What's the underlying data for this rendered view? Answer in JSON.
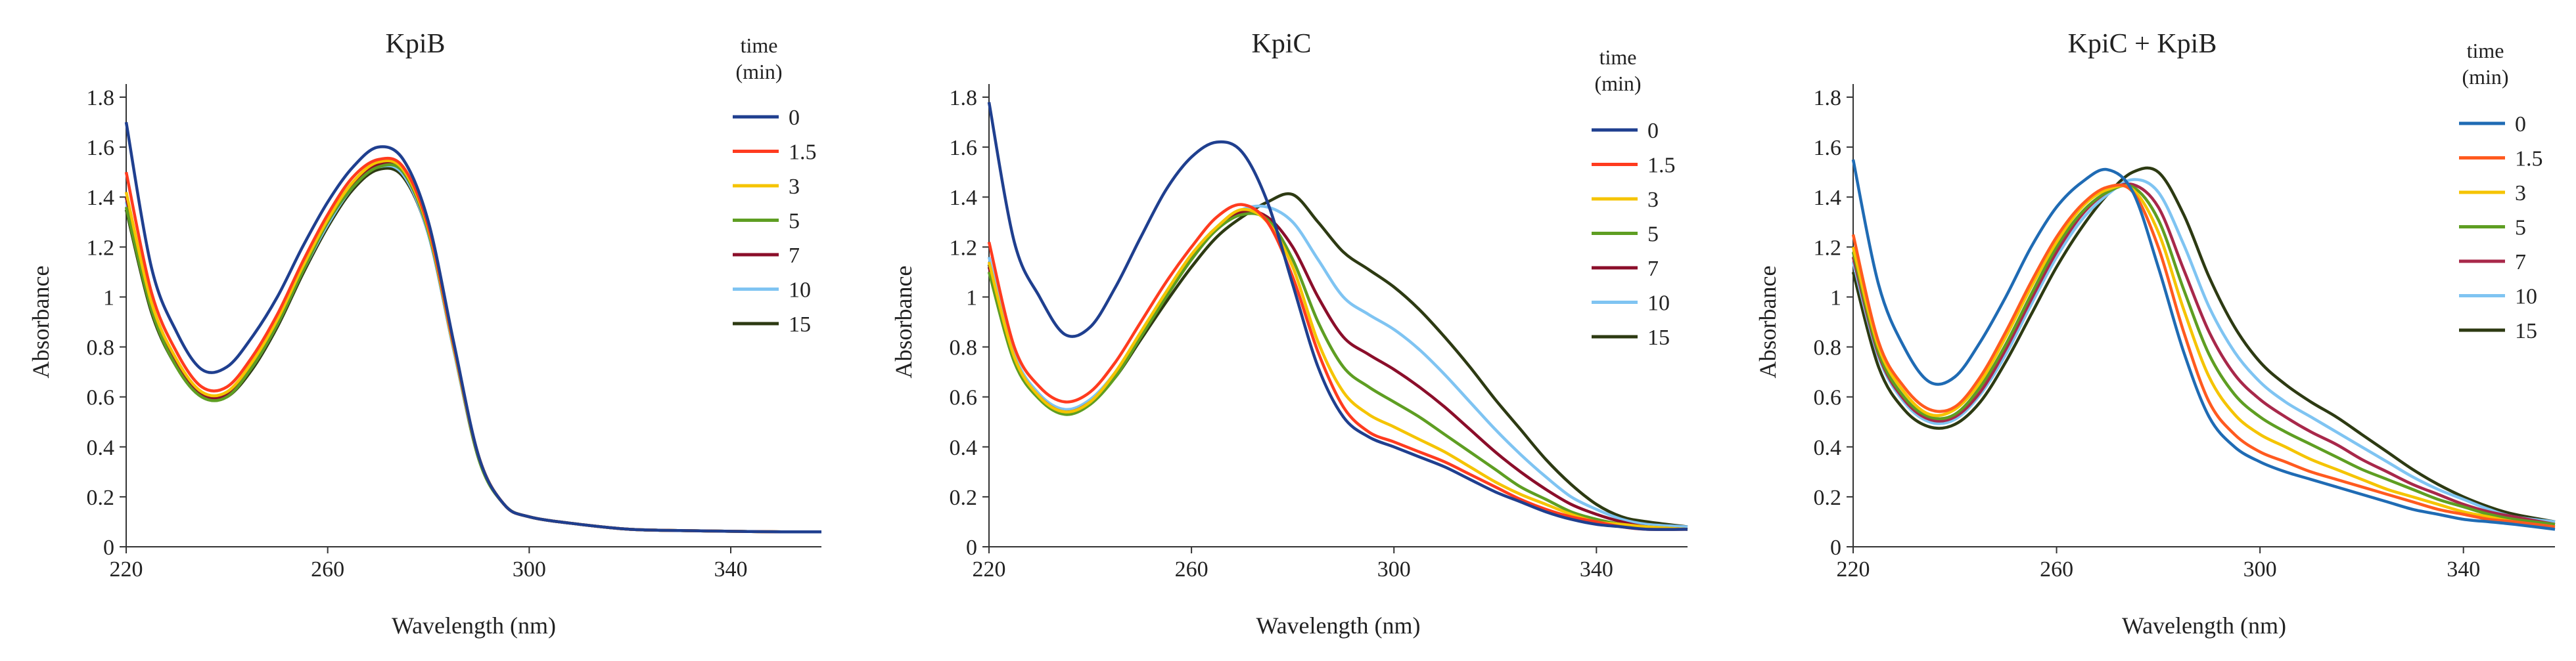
{
  "chart_data": [
    {
      "type": "line",
      "title": "KpiB",
      "xlabel": "Wavelength (nm)",
      "ylabel": "Absorbance",
      "xlim": [
        220,
        358
      ],
      "ylim": [
        0,
        1.8
      ],
      "xticks": [
        220,
        260,
        300,
        340
      ],
      "xtick_labels": [
        "220",
        "260",
        "300",
        "340"
      ],
      "yticks": [
        0,
        0.2,
        0.4,
        0.6,
        0.8,
        1,
        1.2,
        1.4,
        1.6,
        1.8
      ],
      "ytick_labels": [
        "0",
        "0.2",
        "0.4",
        "0.6",
        "0.8",
        "1",
        "1.2",
        "1.4",
        "1.6",
        "1.8"
      ],
      "legend_title": [
        "time",
        "(min)"
      ],
      "x": [
        220,
        225,
        230,
        235,
        240,
        245,
        250,
        255,
        260,
        265,
        270,
        275,
        280,
        285,
        290,
        295,
        300,
        310,
        320,
        330,
        340,
        350,
        358
      ],
      "series": [
        {
          "name": "0",
          "color": "#1f3f8f",
          "values": [
            1.7,
            1.12,
            0.86,
            0.71,
            0.72,
            0.84,
            1.0,
            1.2,
            1.38,
            1.52,
            1.6,
            1.55,
            1.3,
            0.82,
            0.36,
            0.17,
            0.12,
            0.09,
            0.07,
            0.065,
            0.062,
            0.06,
            0.06
          ]
        },
        {
          "name": "1.5",
          "color": "#ff3b1f",
          "values": [
            1.5,
            1.02,
            0.78,
            0.64,
            0.64,
            0.76,
            0.93,
            1.14,
            1.33,
            1.48,
            1.55,
            1.52,
            1.28,
            0.81,
            0.36,
            0.17,
            0.12,
            0.09,
            0.07,
            0.065,
            0.062,
            0.06,
            0.06
          ]
        },
        {
          "name": "3",
          "color": "#f5c400",
          "values": [
            1.42,
            0.98,
            0.75,
            0.62,
            0.62,
            0.74,
            0.91,
            1.12,
            1.31,
            1.46,
            1.54,
            1.51,
            1.27,
            0.8,
            0.36,
            0.17,
            0.12,
            0.09,
            0.07,
            0.065,
            0.062,
            0.06,
            0.06
          ]
        },
        {
          "name": "5",
          "color": "#5e9e22",
          "values": [
            1.36,
            0.95,
            0.72,
            0.6,
            0.6,
            0.72,
            0.89,
            1.1,
            1.3,
            1.44,
            1.52,
            1.5,
            1.26,
            0.8,
            0.35,
            0.17,
            0.12,
            0.09,
            0.07,
            0.065,
            0.062,
            0.06,
            0.06
          ]
        },
        {
          "name": "7",
          "color": "#8b0e2a",
          "values": [
            1.4,
            0.97,
            0.74,
            0.61,
            0.61,
            0.73,
            0.9,
            1.11,
            1.3,
            1.45,
            1.53,
            1.5,
            1.26,
            0.8,
            0.36,
            0.17,
            0.12,
            0.09,
            0.07,
            0.065,
            0.062,
            0.06,
            0.06
          ]
        },
        {
          "name": "10",
          "color": "#7fc4f2",
          "values": [
            1.38,
            0.96,
            0.73,
            0.6,
            0.61,
            0.72,
            0.89,
            1.1,
            1.29,
            1.44,
            1.52,
            1.49,
            1.25,
            0.79,
            0.35,
            0.17,
            0.12,
            0.09,
            0.07,
            0.065,
            0.062,
            0.06,
            0.06
          ]
        },
        {
          "name": "15",
          "color": "#2d3a12",
          "values": [
            1.35,
            0.94,
            0.72,
            0.6,
            0.6,
            0.71,
            0.88,
            1.09,
            1.28,
            1.43,
            1.51,
            1.48,
            1.25,
            0.79,
            0.35,
            0.17,
            0.12,
            0.09,
            0.07,
            0.065,
            0.062,
            0.06,
            0.06
          ]
        }
      ]
    },
    {
      "type": "line",
      "title": "KpiC",
      "xlabel": "Wavelength (nm)",
      "ylabel": "Absorbance",
      "xlim": [
        220,
        358
      ],
      "ylim": [
        0,
        1.8
      ],
      "xticks": [
        220,
        260,
        300,
        340
      ],
      "xtick_labels": [
        "220",
        "260",
        "300",
        "340"
      ],
      "yticks": [
        0,
        0.2,
        0.4,
        0.6,
        0.8,
        1,
        1.2,
        1.4,
        1.6,
        1.8
      ],
      "ytick_labels": [
        "0",
        "0.2",
        "0.4",
        "0.6",
        "0.8",
        "1",
        "1.2",
        "1.4",
        "1.6",
        "1.8"
      ],
      "legend_title": [
        "time",
        "(min)"
      ],
      "x": [
        220,
        225,
        230,
        235,
        240,
        245,
        250,
        255,
        260,
        265,
        270,
        275,
        280,
        285,
        290,
        295,
        300,
        305,
        310,
        315,
        320,
        325,
        330,
        335,
        340,
        345,
        350,
        358
      ],
      "series": [
        {
          "name": "0",
          "color": "#1f3f8f",
          "values": [
            1.78,
            1.22,
            1.0,
            0.85,
            0.88,
            1.04,
            1.24,
            1.43,
            1.56,
            1.62,
            1.58,
            1.38,
            1.05,
            0.72,
            0.52,
            0.44,
            0.4,
            0.36,
            0.32,
            0.27,
            0.22,
            0.18,
            0.14,
            0.11,
            0.09,
            0.08,
            0.07,
            0.07
          ]
        },
        {
          "name": "1.5",
          "color": "#ff3b1f",
          "values": [
            1.22,
            0.8,
            0.64,
            0.58,
            0.62,
            0.74,
            0.9,
            1.06,
            1.2,
            1.32,
            1.37,
            1.3,
            1.08,
            0.78,
            0.56,
            0.46,
            0.42,
            0.38,
            0.34,
            0.29,
            0.24,
            0.19,
            0.15,
            0.12,
            0.1,
            0.08,
            0.07,
            0.07
          ]
        },
        {
          "name": "3",
          "color": "#f5c400",
          "values": [
            1.14,
            0.76,
            0.6,
            0.54,
            0.58,
            0.7,
            0.86,
            1.02,
            1.17,
            1.28,
            1.35,
            1.3,
            1.12,
            0.82,
            0.62,
            0.53,
            0.48,
            0.43,
            0.38,
            0.32,
            0.26,
            0.21,
            0.17,
            0.13,
            0.1,
            0.09,
            0.08,
            0.07
          ]
        },
        {
          "name": "5",
          "color": "#5e9e22",
          "values": [
            1.1,
            0.74,
            0.59,
            0.53,
            0.57,
            0.68,
            0.84,
            1.0,
            1.15,
            1.27,
            1.33,
            1.31,
            1.15,
            0.9,
            0.72,
            0.64,
            0.58,
            0.52,
            0.45,
            0.38,
            0.31,
            0.24,
            0.19,
            0.14,
            0.11,
            0.09,
            0.08,
            0.07
          ]
        },
        {
          "name": "7",
          "color": "#8b0e2a",
          "values": [
            1.12,
            0.75,
            0.6,
            0.54,
            0.58,
            0.69,
            0.85,
            1.01,
            1.16,
            1.27,
            1.34,
            1.32,
            1.2,
            1.0,
            0.84,
            0.77,
            0.71,
            0.64,
            0.56,
            0.47,
            0.38,
            0.3,
            0.23,
            0.17,
            0.13,
            0.1,
            0.08,
            0.07
          ]
        },
        {
          "name": "10",
          "color": "#7fc4f2",
          "values": [
            1.16,
            0.77,
            0.61,
            0.55,
            0.59,
            0.7,
            0.86,
            1.02,
            1.17,
            1.28,
            1.35,
            1.36,
            1.3,
            1.15,
            1.0,
            0.93,
            0.87,
            0.79,
            0.69,
            0.58,
            0.47,
            0.37,
            0.28,
            0.2,
            0.15,
            0.11,
            0.09,
            0.08
          ]
        },
        {
          "name": "15",
          "color": "#2d3a12",
          "values": [
            1.13,
            0.75,
            0.6,
            0.54,
            0.58,
            0.68,
            0.83,
            0.98,
            1.12,
            1.24,
            1.32,
            1.38,
            1.41,
            1.3,
            1.18,
            1.11,
            1.04,
            0.95,
            0.84,
            0.72,
            0.59,
            0.47,
            0.35,
            0.25,
            0.17,
            0.12,
            0.1,
            0.08
          ]
        }
      ]
    },
    {
      "type": "line",
      "title": "KpiC + KpiB",
      "xlabel": "Wavelength (nm)",
      "ylabel": "Absorbance",
      "xlim": [
        220,
        358
      ],
      "ylim": [
        0,
        1.8
      ],
      "xticks": [
        220,
        260,
        300,
        340
      ],
      "xtick_labels": [
        "220",
        "260",
        "300",
        "340"
      ],
      "yticks": [
        0,
        0.2,
        0.4,
        0.6,
        0.8,
        1,
        1.2,
        1.4,
        1.6,
        1.8
      ],
      "ytick_labels": [
        "0",
        "0.2",
        "0.4",
        "0.6",
        "0.8",
        "1",
        "1.2",
        "1.4",
        "1.6",
        "1.8"
      ],
      "legend_title": [
        "time",
        "(min)"
      ],
      "x": [
        220,
        225,
        230,
        235,
        240,
        245,
        250,
        255,
        260,
        265,
        270,
        275,
        280,
        285,
        290,
        295,
        300,
        305,
        310,
        315,
        320,
        325,
        330,
        335,
        340,
        345,
        350,
        358
      ],
      "series": [
        {
          "name": "0",
          "color": "#1f6bb4",
          "values": [
            1.55,
            1.05,
            0.8,
            0.66,
            0.68,
            0.82,
            1.0,
            1.2,
            1.36,
            1.46,
            1.51,
            1.42,
            1.12,
            0.78,
            0.52,
            0.4,
            0.34,
            0.3,
            0.27,
            0.24,
            0.21,
            0.18,
            0.15,
            0.13,
            0.11,
            0.1,
            0.09,
            0.07
          ]
        },
        {
          "name": "1.5",
          "color": "#ff5a1f",
          "values": [
            1.25,
            0.82,
            0.64,
            0.55,
            0.56,
            0.68,
            0.86,
            1.06,
            1.24,
            1.37,
            1.44,
            1.42,
            1.2,
            0.86,
            0.58,
            0.45,
            0.38,
            0.34,
            0.3,
            0.27,
            0.24,
            0.21,
            0.18,
            0.15,
            0.13,
            0.11,
            0.1,
            0.08
          ]
        },
        {
          "name": "3",
          "color": "#f5c400",
          "values": [
            1.2,
            0.8,
            0.62,
            0.53,
            0.55,
            0.66,
            0.84,
            1.04,
            1.22,
            1.36,
            1.43,
            1.43,
            1.26,
            0.95,
            0.68,
            0.53,
            0.45,
            0.4,
            0.35,
            0.31,
            0.27,
            0.23,
            0.2,
            0.17,
            0.14,
            0.12,
            0.1,
            0.08
          ]
        },
        {
          "name": "5",
          "color": "#5e9e22",
          "values": [
            1.18,
            0.78,
            0.6,
            0.52,
            0.53,
            0.64,
            0.81,
            1.01,
            1.2,
            1.34,
            1.42,
            1.44,
            1.31,
            1.03,
            0.77,
            0.61,
            0.52,
            0.46,
            0.41,
            0.36,
            0.31,
            0.27,
            0.23,
            0.19,
            0.16,
            0.13,
            0.11,
            0.09
          ]
        },
        {
          "name": "7",
          "color": "#a8284a",
          "values": [
            1.16,
            0.77,
            0.59,
            0.51,
            0.52,
            0.62,
            0.79,
            0.99,
            1.18,
            1.33,
            1.42,
            1.45,
            1.36,
            1.11,
            0.86,
            0.69,
            0.59,
            0.52,
            0.46,
            0.41,
            0.35,
            0.3,
            0.25,
            0.21,
            0.17,
            0.14,
            0.12,
            0.09
          ]
        },
        {
          "name": "10",
          "color": "#7fc4f2",
          "values": [
            1.14,
            0.76,
            0.58,
            0.5,
            0.51,
            0.61,
            0.77,
            0.97,
            1.16,
            1.31,
            1.41,
            1.47,
            1.42,
            1.21,
            0.96,
            0.78,
            0.66,
            0.58,
            0.52,
            0.46,
            0.4,
            0.34,
            0.28,
            0.23,
            0.19,
            0.15,
            0.12,
            0.1
          ]
        },
        {
          "name": "15",
          "color": "#2d3a12",
          "values": [
            1.1,
            0.72,
            0.55,
            0.48,
            0.49,
            0.58,
            0.74,
            0.93,
            1.12,
            1.28,
            1.41,
            1.5,
            1.5,
            1.33,
            1.08,
            0.88,
            0.74,
            0.65,
            0.58,
            0.52,
            0.45,
            0.38,
            0.31,
            0.25,
            0.2,
            0.16,
            0.13,
            0.1
          ]
        }
      ]
    }
  ]
}
